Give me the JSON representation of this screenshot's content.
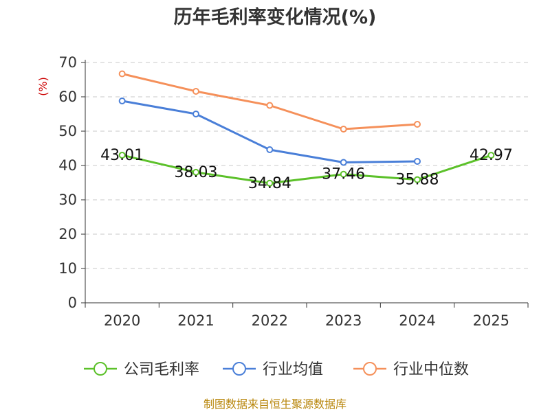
{
  "chart_data": {
    "type": "line",
    "title": "历年毛利率变化情况(%)",
    "ylabel": "(%)",
    "xlabel": "",
    "categories": [
      "2020",
      "2021",
      "2022",
      "2023",
      "2024",
      "2025"
    ],
    "ylim": [
      0,
      70
    ],
    "yticks": [
      0,
      10,
      20,
      30,
      40,
      50,
      60,
      70
    ],
    "grid": true,
    "legend_position": "bottom",
    "series": [
      {
        "name": "公司毛利率",
        "color": "#5cc12a",
        "values": [
          43.01,
          38.03,
          34.84,
          37.46,
          35.88,
          42.97
        ],
        "show_labels": true
      },
      {
        "name": "行业均值",
        "color": "#4a7fd8",
        "values": [
          58.8,
          55.0,
          44.6,
          40.9,
          41.2,
          null
        ],
        "show_labels": false
      },
      {
        "name": "行业中位数",
        "color": "#f5905a",
        "values": [
          66.7,
          61.6,
          57.5,
          50.6,
          52.0,
          null
        ],
        "show_labels": false
      }
    ],
    "data_labels": [
      "43.01",
      "38.03",
      "34.84",
      "37.46",
      "35.88",
      "42.97"
    ]
  },
  "source": "制图数据来自恒生聚源数据库"
}
